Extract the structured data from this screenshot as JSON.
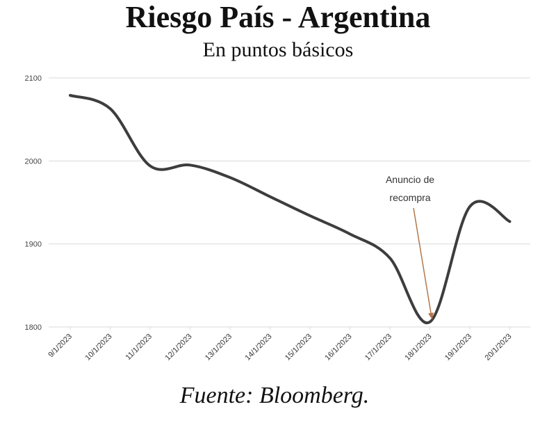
{
  "chart_data": {
    "type": "line",
    "title": "Riesgo País - Argentina",
    "subtitle": "En puntos básicos",
    "source": "Fuente: Bloomberg.",
    "categories": [
      "9/1/2023",
      "10/1/2023",
      "11/1/2023",
      "12/1/2023",
      "13/1/2023",
      "14/1/2023",
      "15/1/2023",
      "16/1/2023",
      "17/1/2023",
      "18/1/2023",
      "19/1/2023",
      "20/1/2023"
    ],
    "series": [
      {
        "values": [
          2079,
          2063,
          1994,
          1995,
          1980,
          1957,
          1934,
          1912,
          1883,
          1806,
          1945,
          1927
        ]
      }
    ],
    "ylim": [
      1800,
      2100
    ],
    "yticks": [
      1800,
      1900,
      2000,
      2100
    ],
    "grid": true,
    "annotation": {
      "lines": [
        "Anuncio de",
        "recompra"
      ],
      "category": "18/1/2023",
      "value": 1806,
      "color": "#b5764a"
    },
    "line_color": "#3d3d3d",
    "grid_color": "#d9d9d9"
  }
}
